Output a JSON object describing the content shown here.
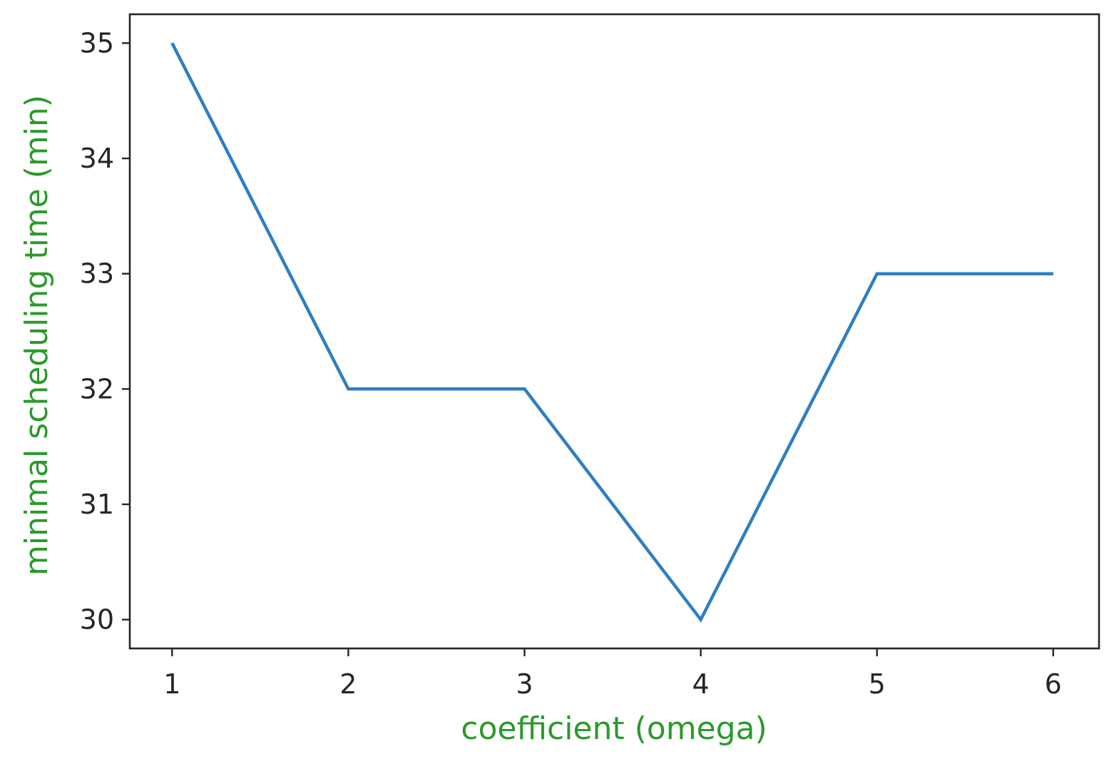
{
  "chart_data": {
    "type": "line",
    "title": "",
    "xlabel": "coefficient (omega)",
    "ylabel": "minimal scheduling time (min)",
    "x": [
      1,
      2,
      3,
      4,
      5,
      6
    ],
    "series": [
      {
        "values": [
          35,
          32,
          32,
          30,
          33,
          33
        ],
        "color": "#2f7ec1"
      }
    ],
    "xlim": [
      0.76,
      6.26
    ],
    "ylim": [
      29.75,
      35.25
    ],
    "xticks": [
      "1",
      "2",
      "3",
      "4",
      "5",
      "6"
    ],
    "yticks": [
      "30",
      "31",
      "32",
      "33",
      "34",
      "35"
    ],
    "label_color": "#2a9a2a",
    "grid": false,
    "legend": "none"
  }
}
